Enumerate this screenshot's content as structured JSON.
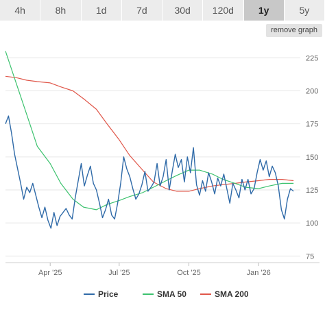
{
  "ranges": {
    "items": [
      {
        "label": "4h",
        "active": false
      },
      {
        "label": "8h",
        "active": false
      },
      {
        "label": "1d",
        "active": false
      },
      {
        "label": "7d",
        "active": false
      },
      {
        "label": "30d",
        "active": false
      },
      {
        "label": "120d",
        "active": false
      },
      {
        "label": "1y",
        "active": true
      },
      {
        "label": "5y",
        "active": false
      }
    ],
    "colors": {
      "tab_bg": "#ececec",
      "tab_active_bg": "#c8c8c8"
    }
  },
  "toolbar": {
    "remove_label": "remove graph"
  },
  "chart_data": {
    "type": "line",
    "grid": "horizontal",
    "y_axis_side": "right",
    "ylim": [
      70,
      235
    ],
    "y_ticks": [
      75,
      100,
      125,
      150,
      175,
      200,
      225
    ],
    "x_range": [
      "2025-02-01",
      "2026-02-25"
    ],
    "x_ticks": [
      {
        "date": "2025-04-01",
        "label": "Apr '25"
      },
      {
        "date": "2025-07-01",
        "label": "Jul '25"
      },
      {
        "date": "2025-10-01",
        "label": "Oct '25"
      },
      {
        "date": "2026-01-01",
        "label": "Jan '26"
      }
    ],
    "legend_position": "bottom",
    "series": [
      {
        "name": "Price",
        "color": "#2f6aa8",
        "points": [
          [
            "2025-02-01",
            175
          ],
          [
            "2025-02-05",
            181
          ],
          [
            "2025-02-09",
            168
          ],
          [
            "2025-02-13",
            152
          ],
          [
            "2025-02-17",
            141
          ],
          [
            "2025-02-21",
            130
          ],
          [
            "2025-02-25",
            118
          ],
          [
            "2025-03-01",
            127
          ],
          [
            "2025-03-05",
            123
          ],
          [
            "2025-03-09",
            130
          ],
          [
            "2025-03-13",
            121
          ],
          [
            "2025-03-17",
            112
          ],
          [
            "2025-03-21",
            104
          ],
          [
            "2025-03-25",
            112
          ],
          [
            "2025-03-29",
            102
          ],
          [
            "2025-04-02",
            96
          ],
          [
            "2025-04-06",
            108
          ],
          [
            "2025-04-10",
            98
          ],
          [
            "2025-04-14",
            105
          ],
          [
            "2025-04-18",
            108
          ],
          [
            "2025-04-22",
            111
          ],
          [
            "2025-04-26",
            106
          ],
          [
            "2025-04-30",
            103
          ],
          [
            "2025-05-04",
            119
          ],
          [
            "2025-05-08",
            132
          ],
          [
            "2025-05-12",
            145
          ],
          [
            "2025-05-16",
            128
          ],
          [
            "2025-05-20",
            136
          ],
          [
            "2025-05-24",
            143
          ],
          [
            "2025-05-28",
            130
          ],
          [
            "2025-06-01",
            125
          ],
          [
            "2025-06-05",
            115
          ],
          [
            "2025-06-09",
            104
          ],
          [
            "2025-06-13",
            110
          ],
          [
            "2025-06-17",
            118
          ],
          [
            "2025-06-21",
            106
          ],
          [
            "2025-06-25",
            103
          ],
          [
            "2025-06-29",
            115
          ],
          [
            "2025-07-03",
            130
          ],
          [
            "2025-07-07",
            150
          ],
          [
            "2025-07-11",
            141
          ],
          [
            "2025-07-15",
            135
          ],
          [
            "2025-07-19",
            126
          ],
          [
            "2025-07-23",
            118
          ],
          [
            "2025-07-27",
            122
          ],
          [
            "2025-07-31",
            129
          ],
          [
            "2025-08-04",
            139
          ],
          [
            "2025-08-08",
            124
          ],
          [
            "2025-08-12",
            127
          ],
          [
            "2025-08-16",
            131
          ],
          [
            "2025-08-20",
            145
          ],
          [
            "2025-08-24",
            128
          ],
          [
            "2025-08-28",
            135
          ],
          [
            "2025-09-01",
            148
          ],
          [
            "2025-09-05",
            125
          ],
          [
            "2025-09-09",
            139
          ],
          [
            "2025-09-13",
            152
          ],
          [
            "2025-09-17",
            142
          ],
          [
            "2025-09-21",
            148
          ],
          [
            "2025-09-25",
            131
          ],
          [
            "2025-09-29",
            150
          ],
          [
            "2025-10-03",
            138
          ],
          [
            "2025-10-07",
            157
          ],
          [
            "2025-10-11",
            129
          ],
          [
            "2025-10-15",
            121
          ],
          [
            "2025-10-19",
            132
          ],
          [
            "2025-10-23",
            124
          ],
          [
            "2025-10-27",
            138
          ],
          [
            "2025-10-31",
            131
          ],
          [
            "2025-11-04",
            122
          ],
          [
            "2025-11-08",
            134
          ],
          [
            "2025-11-12",
            128
          ],
          [
            "2025-11-16",
            137
          ],
          [
            "2025-11-20",
            126
          ],
          [
            "2025-11-24",
            115
          ],
          [
            "2025-11-28",
            130
          ],
          [
            "2025-12-02",
            125
          ],
          [
            "2025-12-06",
            119
          ],
          [
            "2025-12-10",
            133
          ],
          [
            "2025-12-14",
            125
          ],
          [
            "2025-12-18",
            133
          ],
          [
            "2025-12-22",
            122
          ],
          [
            "2025-12-26",
            126
          ],
          [
            "2025-12-30",
            138
          ],
          [
            "2026-01-03",
            148
          ],
          [
            "2026-01-07",
            140
          ],
          [
            "2026-01-11",
            147
          ],
          [
            "2026-01-15",
            135
          ],
          [
            "2026-01-19",
            143
          ],
          [
            "2026-01-23",
            138
          ],
          [
            "2026-01-27",
            128
          ],
          [
            "2026-01-31",
            110
          ],
          [
            "2026-02-04",
            103
          ],
          [
            "2026-02-08",
            118
          ],
          [
            "2026-02-12",
            126
          ],
          [
            "2026-02-16",
            124
          ]
        ]
      },
      {
        "name": "SMA 50",
        "color": "#3cc26e",
        "points": [
          [
            "2025-02-01",
            230
          ],
          [
            "2025-02-15",
            206
          ],
          [
            "2025-03-01",
            182
          ],
          [
            "2025-03-15",
            158
          ],
          [
            "2025-04-01",
            145
          ],
          [
            "2025-04-15",
            130
          ],
          [
            "2025-05-01",
            118
          ],
          [
            "2025-05-15",
            112
          ],
          [
            "2025-06-01",
            110
          ],
          [
            "2025-06-15",
            114
          ],
          [
            "2025-07-01",
            117
          ],
          [
            "2025-07-15",
            120
          ],
          [
            "2025-08-01",
            123
          ],
          [
            "2025-08-15",
            127
          ],
          [
            "2025-09-01",
            132
          ],
          [
            "2025-09-15",
            136
          ],
          [
            "2025-10-01",
            140
          ],
          [
            "2025-10-15",
            140
          ],
          [
            "2025-11-01",
            137
          ],
          [
            "2025-11-15",
            133
          ],
          [
            "2025-12-01",
            130
          ],
          [
            "2025-12-15",
            127
          ],
          [
            "2026-01-01",
            126
          ],
          [
            "2026-01-15",
            128
          ],
          [
            "2026-02-01",
            130
          ],
          [
            "2026-02-16",
            130
          ]
        ]
      },
      {
        "name": "SMA 200",
        "color": "#e0574a",
        "points": [
          [
            "2025-02-01",
            211
          ],
          [
            "2025-02-15",
            210
          ],
          [
            "2025-03-01",
            208
          ],
          [
            "2025-03-15",
            207
          ],
          [
            "2025-04-01",
            206
          ],
          [
            "2025-04-15",
            203
          ],
          [
            "2025-05-01",
            200
          ],
          [
            "2025-05-15",
            194
          ],
          [
            "2025-06-01",
            186
          ],
          [
            "2025-06-15",
            175
          ],
          [
            "2025-07-01",
            163
          ],
          [
            "2025-07-15",
            151
          ],
          [
            "2025-08-01",
            140
          ],
          [
            "2025-08-15",
            131
          ],
          [
            "2025-09-01",
            126
          ],
          [
            "2025-09-15",
            124
          ],
          [
            "2025-10-01",
            124
          ],
          [
            "2025-10-15",
            126
          ],
          [
            "2025-11-01",
            128
          ],
          [
            "2025-11-15",
            129
          ],
          [
            "2025-12-01",
            130
          ],
          [
            "2025-12-15",
            131
          ],
          [
            "2026-01-01",
            132
          ],
          [
            "2026-01-15",
            133
          ],
          [
            "2026-02-01",
            133
          ],
          [
            "2026-02-16",
            132
          ]
        ]
      }
    ]
  }
}
